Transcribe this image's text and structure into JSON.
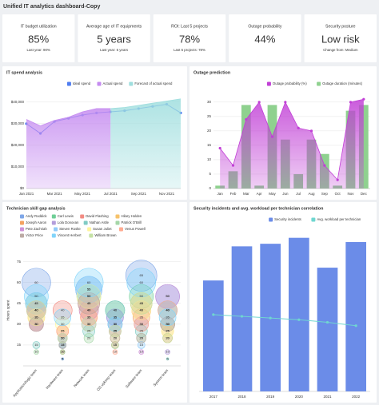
{
  "header": {
    "title": "Unified IT analytics dashboard-Copy"
  },
  "kpis": [
    {
      "label": "IT budget utilization",
      "value": "85%",
      "note": "Last year: 90%"
    },
    {
      "label": "Average age of IT equipments",
      "value": "5 years",
      "note": "Last year: 5 years"
    },
    {
      "label": "ROI: Last 5 projects",
      "value": "78%",
      "note": "Last 5 projects: 78%"
    },
    {
      "label": "Outage probability",
      "value": "44%"
    },
    {
      "label": "Security posture",
      "value": "Low risk",
      "note": "Change from: Medium"
    }
  ],
  "chart_data": [
    {
      "type": "area",
      "title": "IT spend analysis",
      "categories": [
        "Jan 2021",
        null,
        "Mar 2021",
        null,
        "May 2021",
        null,
        "Jul 2021",
        null,
        "Sep 2021",
        null,
        "Nov 2021",
        null
      ],
      "series": [
        {
          "name": "Ideal spend",
          "color": "#4f7df0",
          "style": "line",
          "markers": true,
          "values": [
            30000,
            25500,
            31000,
            32500,
            34000,
            35000,
            35500,
            36000,
            37000,
            38000,
            39000,
            35000
          ]
        },
        {
          "name": "Actual spend",
          "color": "#c58bf0",
          "style": "area",
          "values": [
            32000,
            29000,
            31500,
            33000,
            35500,
            37000,
            37000,
            null,
            null,
            null,
            null,
            null
          ]
        },
        {
          "name": "Forecast of actual spend",
          "color": "#9fdede",
          "style": "area",
          "values": [
            null,
            null,
            null,
            null,
            null,
            null,
            37000,
            37500,
            38500,
            39500,
            40500,
            41500
          ]
        }
      ],
      "ylim": [
        0,
        44000
      ],
      "yticks": [
        {
          "value": 0,
          "label": "$0"
        },
        {
          "value": 10000,
          "label": "$10,000"
        },
        {
          "value": 20000,
          "label": "$20,000"
        },
        {
          "value": 30000,
          "label": "$30,000"
        },
        {
          "value": 40000,
          "label": "$40,000"
        }
      ],
      "grid": true
    },
    {
      "type": "combo",
      "title": "Outage prediction",
      "categories": [
        "Jan",
        "Feb",
        "Mar",
        "Apr",
        "May",
        "Jun",
        "Jul",
        "Aug",
        "Sep",
        "Oct",
        "Nov",
        "Dec"
      ],
      "series": [
        {
          "name": "Outage probability (%)",
          "color": "#c13fd6",
          "style": "area",
          "markers": true,
          "values": [
            14,
            8,
            24,
            30,
            18,
            30,
            21,
            20,
            8,
            3,
            30,
            31
          ]
        },
        {
          "name": "Outage duration (minutes)",
          "color": "#8fd18f",
          "style": "bar",
          "values": [
            1,
            6,
            29,
            1,
            29,
            17,
            5,
            17,
            12,
            1,
            27,
            29
          ]
        }
      ],
      "ylim": [
        0,
        33
      ],
      "yticks": [
        0,
        5,
        10,
        15,
        20,
        25,
        30
      ],
      "grid": true
    },
    {
      "type": "bubble",
      "title": "Technician skill gap analysis",
      "y_label": "Hours spent",
      "categories": [
        "Application/logic team",
        "Hardware team",
        "Network team",
        "OS upkeep team",
        "Software team",
        "System team"
      ],
      "series": [
        {
          "name": "Andy Roddick",
          "color": "#7fa7e8",
          "values": [
            60,
            15,
            55,
            35,
            65,
            50
          ]
        },
        {
          "name": "Carl Lewis",
          "color": "#6fcf97",
          "values": [
            45,
            20,
            50,
            40,
            50,
            40
          ]
        },
        {
          "name": "David Flashing",
          "color": "#f28b82",
          "values": [
            40,
            40,
            45,
            30,
            40,
            30
          ]
        },
        {
          "name": "Hilary Holden",
          "color": "#f6c26b",
          "values": [
            35,
            25,
            40,
            25,
            45,
            25
          ]
        },
        {
          "name": "Joseph Aaron",
          "color": "#f4a261",
          "values": [
            30,
            10,
            35,
            15,
            35,
            20
          ]
        },
        {
          "name": "Lola Donovan",
          "color": "#b39ddb",
          "values": [
            40,
            5,
            30,
            35,
            30,
            10
          ]
        },
        {
          "name": "Nathan Astle",
          "color": "#80cbc4",
          "values": [
            15,
            15,
            25,
            40,
            25,
            5
          ]
        },
        {
          "name": "Patrick O'Brill",
          "color": "#a5d6a7",
          "values": [
            10,
            10,
            20,
            15,
            20,
            30
          ]
        },
        {
          "name": "Pete Zachriah",
          "color": "#ce93d8",
          "values": [
            30,
            20,
            40,
            25,
            10,
            50
          ]
        },
        {
          "name": "Steven Roslte",
          "color": "#90caf9",
          "values": [
            45,
            5,
            55,
            30,
            15,
            40
          ]
        },
        {
          "name": "Susan Juliet",
          "color": "#fff59d",
          "values": [
            35,
            30,
            50,
            20,
            40,
            25
          ]
        },
        {
          "name": "Venus Powell",
          "color": "#ffab91",
          "values": [
            40,
            25,
            35,
            10,
            30,
            40
          ]
        },
        {
          "name": "Victor Price",
          "color": "#bcaaa4",
          "values": [
            30,
            15,
            45,
            20,
            20,
            30
          ]
        },
        {
          "name": "Vincent Herbert",
          "color": "#81d4fa",
          "values": [
            50,
            35,
            60,
            30,
            60,
            35
          ]
        },
        {
          "name": "William Brown",
          "color": "#c5e1a5",
          "values": [
            40,
            20,
            30,
            25,
            45,
            20
          ]
        }
      ],
      "ylim": [
        0,
        80
      ],
      "yticks": [
        15,
        30,
        45,
        60,
        75
      ],
      "grid": true
    },
    {
      "type": "combo",
      "title": "Security incidents and avg. workload per technician correlation",
      "categories": [
        "2017",
        "2018",
        "2019",
        "2020",
        "2021",
        "2022"
      ],
      "series": [
        {
          "name": "Security incidents",
          "color": "#6b8ce8",
          "style": "bar",
          "values": [
            130,
            170,
            173,
            180,
            145,
            175
          ]
        },
        {
          "name": "Avg. workload per technician",
          "color": "#6fd6d0",
          "style": "line",
          "markers": true,
          "values": [
            90,
            88,
            86,
            84,
            81,
            77
          ]
        }
      ],
      "ylim": [
        0,
        190
      ],
      "grid": false
    }
  ]
}
